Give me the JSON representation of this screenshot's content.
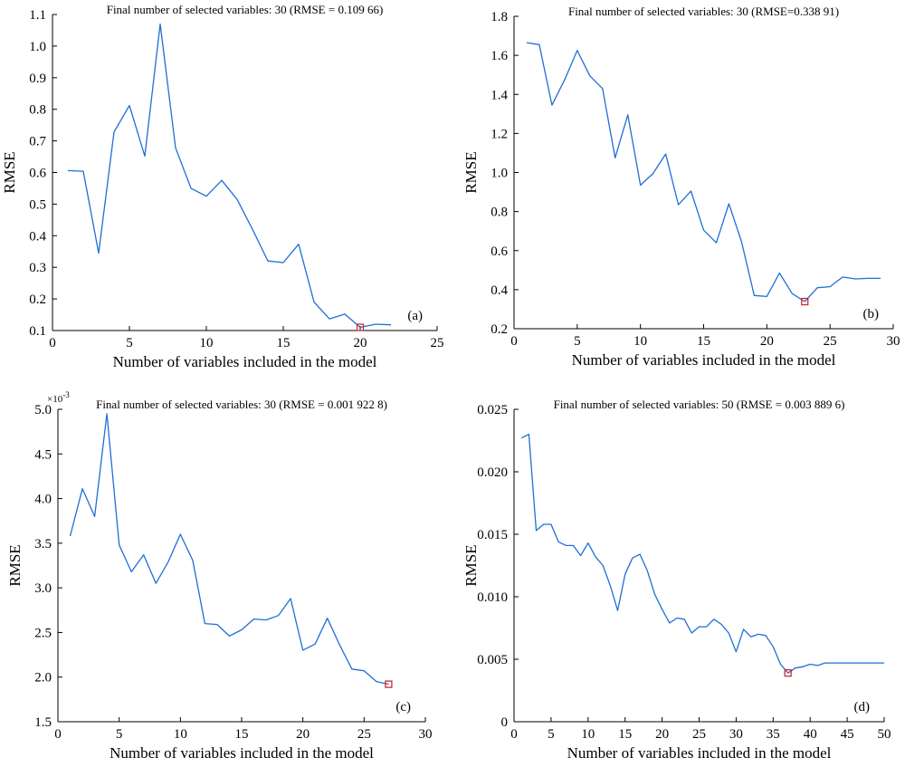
{
  "chart_data": [
    {
      "type": "line",
      "panel_label": "(a)",
      "title": "Final number of selected variables: 30  (RMSE = 0.109 66)",
      "xlabel": "Number of variables included in the model",
      "ylabel": "RMSE",
      "xlim": [
        0,
        25
      ],
      "ylim": [
        0.1,
        1.1
      ],
      "x_ticks": [
        0,
        5,
        10,
        15,
        20,
        25
      ],
      "y_ticks": [
        0.1,
        0.2,
        0.3,
        0.4,
        0.5,
        0.6,
        0.7,
        0.8,
        0.9,
        1.0,
        1.1
      ],
      "y_tick_labels": [
        "0.1",
        "0.2",
        "0.3",
        "0.4",
        "0.5",
        "0.6",
        "0.7",
        "0.8",
        "0.9",
        "1.0",
        "1.1"
      ],
      "line_color": "#1f6fd6",
      "marker_color": "#d62728",
      "x": [
        1,
        2,
        3,
        4,
        5,
        6,
        7,
        8,
        9,
        10,
        11,
        12,
        13,
        14,
        15,
        16,
        17,
        18,
        19,
        20,
        21,
        22
      ],
      "values": [
        0.606,
        0.604,
        0.345,
        0.728,
        0.812,
        0.652,
        1.07,
        0.678,
        0.55,
        0.525,
        0.575,
        0.515,
        0.42,
        0.32,
        0.315,
        0.373,
        0.19,
        0.137,
        0.152,
        0.11,
        0.12,
        0.118
      ],
      "marker": {
        "x": 20,
        "y": 0.11
      },
      "grid": false
    },
    {
      "type": "line",
      "panel_label": "(b)",
      "title": "Final number of selected variables: 30  (RMSE=0.338 91)",
      "xlabel": "Number of variables included in the model",
      "ylabel": "RMSE",
      "xlim": [
        0,
        30
      ],
      "ylim": [
        0.2,
        1.8
      ],
      "x_ticks": [
        0,
        5,
        10,
        15,
        20,
        25,
        30
      ],
      "y_ticks": [
        0.2,
        0.4,
        0.6,
        0.8,
        1.0,
        1.2,
        1.4,
        1.6,
        1.8
      ],
      "y_tick_labels": [
        "0.2",
        "0.4",
        "0.6",
        "0.8",
        "1.0",
        "1.2",
        "1.4",
        "1.6",
        "1.8"
      ],
      "line_color": "#1f6fd6",
      "marker_color": "#d62728",
      "x": [
        1,
        2,
        3,
        4,
        5,
        6,
        7,
        8,
        9,
        10,
        11,
        12,
        13,
        14,
        15,
        16,
        17,
        18,
        19,
        20,
        21,
        22,
        23,
        24,
        25,
        26,
        27,
        28,
        29
      ],
      "values": [
        1.665,
        1.655,
        1.345,
        1.475,
        1.625,
        1.495,
        1.43,
        1.075,
        1.295,
        0.935,
        0.995,
        1.095,
        0.835,
        0.905,
        0.705,
        0.64,
        0.84,
        0.645,
        0.37,
        0.365,
        0.485,
        0.38,
        0.339,
        0.41,
        0.415,
        0.465,
        0.455,
        0.458,
        0.458
      ],
      "marker": {
        "x": 23,
        "y": 0.339
      },
      "grid": false
    },
    {
      "type": "line",
      "panel_label": "(c)",
      "title": "Final number of selected variables: 30  (RMSE = 0.001 922 8)",
      "xlabel": "Number of variables included in the model",
      "ylabel": "RMSE",
      "y_scale_note": "×10",
      "y_scale_exponent": "-3",
      "xlim": [
        0,
        30
      ],
      "ylim": [
        1.5,
        5.0
      ],
      "x_ticks": [
        0,
        5,
        10,
        15,
        20,
        25,
        30
      ],
      "y_ticks": [
        1.5,
        2.0,
        2.5,
        3.0,
        3.5,
        4.0,
        4.5,
        5.0
      ],
      "y_tick_labels": [
        "1.5",
        "2.0",
        "2.5",
        "3.0",
        "3.5",
        "4.0",
        "4.5",
        "5.0"
      ],
      "line_color": "#1f6fd6",
      "marker_color": "#d62728",
      "x": [
        1,
        2,
        3,
        4,
        5,
        6,
        7,
        8,
        9,
        10,
        11,
        12,
        13,
        14,
        15,
        16,
        17,
        18,
        19,
        20,
        21,
        22,
        23,
        24,
        25,
        26,
        27
      ],
      "values": [
        3.58,
        4.11,
        3.8,
        4.95,
        3.48,
        3.18,
        3.37,
        3.05,
        3.29,
        3.6,
        3.31,
        2.6,
        2.59,
        2.46,
        2.53,
        2.65,
        2.64,
        2.69,
        2.88,
        2.3,
        2.37,
        2.66,
        2.36,
        2.09,
        2.07,
        1.95,
        1.92
      ],
      "marker": {
        "x": 27,
        "y": 1.92
      },
      "grid": false
    },
    {
      "type": "line",
      "panel_label": "(d)",
      "title": "Final number of selected variables: 50  (RMSE = 0.003 889 6)",
      "xlabel": "Number of variables included in the model",
      "ylabel": "RMSE",
      "xlim": [
        0,
        50
      ],
      "ylim": [
        0,
        0.025
      ],
      "x_ticks": [
        0,
        5,
        10,
        15,
        20,
        25,
        30,
        35,
        40,
        45,
        50
      ],
      "y_ticks": [
        0,
        0.005,
        0.01,
        0.015,
        0.02,
        0.025
      ],
      "y_tick_labels": [
        "0",
        "0.005",
        "0.010",
        "0.015",
        "0.020",
        "0.025"
      ],
      "line_color": "#1f6fd6",
      "marker_color": "#d62728",
      "x": [
        1,
        2,
        3,
        4,
        5,
        6,
        7,
        8,
        9,
        10,
        11,
        12,
        13,
        14,
        15,
        16,
        17,
        18,
        19,
        20,
        21,
        22,
        23,
        24,
        25,
        26,
        27,
        28,
        29,
        30,
        31,
        32,
        33,
        34,
        35,
        36,
        37,
        38,
        39,
        40,
        41,
        42,
        43,
        44,
        45,
        46,
        47,
        48,
        49,
        50
      ],
      "values": [
        0.0227,
        0.023,
        0.0153,
        0.0158,
        0.0158,
        0.0144,
        0.0141,
        0.0141,
        0.0133,
        0.0143,
        0.0132,
        0.0125,
        0.0109,
        0.0089,
        0.0118,
        0.0131,
        0.0134,
        0.0121,
        0.0102,
        0.009,
        0.0079,
        0.0083,
        0.0082,
        0.0071,
        0.0076,
        0.0076,
        0.0082,
        0.0078,
        0.0071,
        0.0056,
        0.0074,
        0.0068,
        0.007,
        0.0069,
        0.006,
        0.0046,
        0.0039,
        0.0043,
        0.0044,
        0.0046,
        0.0045,
        0.0047,
        0.0047,
        0.0047,
        0.0047,
        0.0047,
        0.0047,
        0.0047,
        0.0047,
        0.0047
      ],
      "marker": {
        "x": 37,
        "y": 0.0039
      },
      "grid": false
    }
  ]
}
